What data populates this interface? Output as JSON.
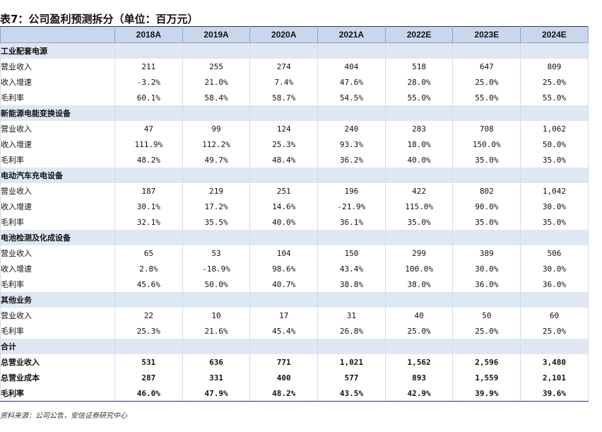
{
  "title": "表7：公司盈利预测拆分（单位：百万元）",
  "columns": [
    "2018A",
    "2019A",
    "2020A",
    "2021A",
    "2022E",
    "2023E",
    "2024E"
  ],
  "rows": [
    {
      "kind": "sec",
      "label": "工业配套电源",
      "values": [
        "",
        "",
        "",
        "",
        "",
        "",
        ""
      ]
    },
    {
      "kind": "row",
      "label": "营业收入",
      "values": [
        "211",
        "255",
        "274",
        "404",
        "518",
        "647",
        "809"
      ]
    },
    {
      "kind": "row",
      "label": "收入增速",
      "values": [
        "-3.2%",
        "21.0%",
        "7.4%",
        "47.6%",
        "28.0%",
        "25.0%",
        "25.0%"
      ]
    },
    {
      "kind": "row",
      "label": "毛利率",
      "values": [
        "60.1%",
        "58.4%",
        "58.7%",
        "54.5%",
        "55.0%",
        "55.0%",
        "55.0%"
      ]
    },
    {
      "kind": "sec",
      "label": "新能源电能变换设备",
      "values": [
        "",
        "",
        "",
        "",
        "",
        "",
        ""
      ]
    },
    {
      "kind": "row",
      "label": "营业收入",
      "values": [
        "47",
        "99",
        "124",
        "240",
        "283",
        "708",
        "1,062"
      ]
    },
    {
      "kind": "row",
      "label": "收入增速",
      "values": [
        "111.9%",
        "112.2%",
        "25.3%",
        "93.3%",
        "18.0%",
        "150.0%",
        "50.0%"
      ]
    },
    {
      "kind": "row",
      "label": "毛利率",
      "values": [
        "48.2%",
        "49.7%",
        "48.4%",
        "36.2%",
        "40.0%",
        "35.0%",
        "35.0%"
      ]
    },
    {
      "kind": "sec",
      "label": "电动汽车充电设备",
      "values": [
        "",
        "",
        "",
        "",
        "",
        "",
        ""
      ]
    },
    {
      "kind": "row",
      "label": "营业收入",
      "values": [
        "187",
        "219",
        "251",
        "196",
        "422",
        "802",
        "1,042"
      ]
    },
    {
      "kind": "row",
      "label": "收入增速",
      "values": [
        "30.1%",
        "17.2%",
        "14.6%",
        "-21.9%",
        "115.0%",
        "90.0%",
        "30.0%"
      ]
    },
    {
      "kind": "row",
      "label": "毛利率",
      "values": [
        "32.1%",
        "35.5%",
        "40.0%",
        "36.1%",
        "35.0%",
        "35.0%",
        "35.0%"
      ]
    },
    {
      "kind": "sec",
      "label": "电池检测及化成设备",
      "values": [
        "",
        "",
        "",
        "",
        "",
        "",
        ""
      ]
    },
    {
      "kind": "row",
      "label": "营业收入",
      "values": [
        "65",
        "53",
        "104",
        "150",
        "299",
        "389",
        "506"
      ]
    },
    {
      "kind": "row",
      "label": "收入增速",
      "values": [
        "2.8%",
        "-18.9%",
        "98.6%",
        "43.4%",
        "100.0%",
        "30.0%",
        "30.0%"
      ]
    },
    {
      "kind": "row",
      "label": "毛利率",
      "values": [
        "45.6%",
        "50.0%",
        "40.7%",
        "38.8%",
        "38.0%",
        "36.0%",
        "36.0%"
      ]
    },
    {
      "kind": "sec",
      "label": "其他业务",
      "values": [
        "",
        "",
        "",
        "",
        "",
        "",
        ""
      ]
    },
    {
      "kind": "row",
      "label": "营业收入",
      "values": [
        "22",
        "10",
        "17",
        "31",
        "40",
        "50",
        "60"
      ]
    },
    {
      "kind": "row",
      "label": "毛利率",
      "values": [
        "25.3%",
        "21.6%",
        "45.4%",
        "26.8%",
        "25.0%",
        "25.0%",
        "25.0%"
      ]
    },
    {
      "kind": "sec",
      "label": "合计",
      "values": [
        "",
        "",
        "",
        "",
        "",
        "",
        ""
      ]
    },
    {
      "kind": "tot",
      "label": "总营业收入",
      "values": [
        "531",
        "636",
        "771",
        "1,021",
        "1,562",
        "2,596",
        "3,480"
      ]
    },
    {
      "kind": "tot",
      "label": "总营业成本",
      "values": [
        "287",
        "331",
        "400",
        "577",
        "893",
        "1,559",
        "2,101"
      ]
    },
    {
      "kind": "tot",
      "label": "毛利率",
      "values": [
        "46.0%",
        "47.9%",
        "48.2%",
        "43.5%",
        "42.9%",
        "39.9%",
        "39.6%"
      ]
    }
  ],
  "source": "资料来源：公司公告，安信证券研究中心"
}
